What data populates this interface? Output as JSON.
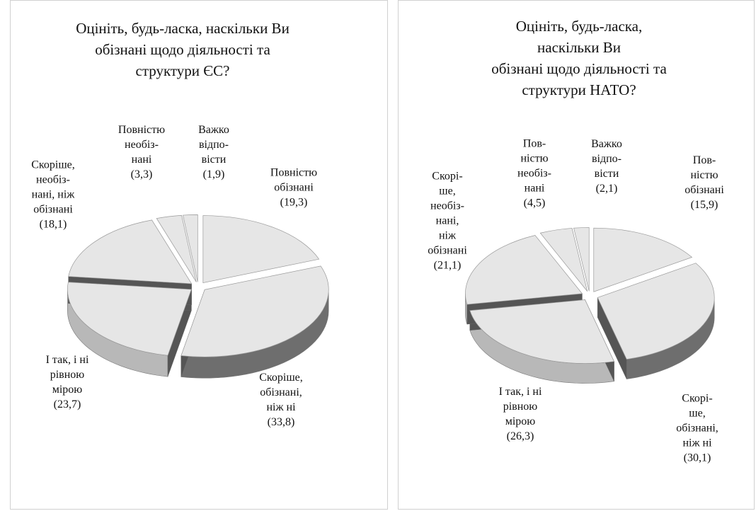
{
  "chart_data": [
    {
      "type": "pie",
      "title": "Оцініть, будь-ласка, наскільки Ви\nобізнані щодо діяльності та\nструктури ЄС?",
      "categories": [
        "Повністю\nобізнані",
        "Скоріше,\nобізнані,\nніж ні",
        "І так, і ні\nрівною\nмірою",
        "Скоріше,\nнеобіз-\nнані, ніж\nобізнані",
        "Повністю\nнеобіз-\nнані",
        "Важко\nвідпо-\nвісти"
      ],
      "values": [
        19.3,
        33.8,
        23.7,
        18.1,
        3.3,
        1.9
      ],
      "value_labels": [
        "(19,3)",
        "(33,8)",
        "(23,7)",
        "(18,1)",
        "(3,3)",
        "(1,9)"
      ],
      "color": "#e6e6e6"
    },
    {
      "type": "pie",
      "title": "Оцініть, будь-ласка, наскільки Ви\nобізнані щодо діяльності та\nструктури НАТО?",
      "categories": [
        "Пов-\nністю\nобізнані",
        "Скорі-\nше,\nобізнані,\nніж ні",
        "І так, і ні\nрівною\nмірою",
        "Скорі-\nше,\nнеобіз-\nнані,\nніж\nобізнані",
        "Пов-\nністю\nнеобіз-\nнані",
        "Важко\nвідпо-\nвісти"
      ],
      "values": [
        15.9,
        30.1,
        26.3,
        21.1,
        4.5,
        2.1
      ],
      "value_labels": [
        "(15,9)",
        "(30,1)",
        "(26,3)",
        "(21,1)",
        "(4,5)",
        "(2,1)"
      ],
      "color": "#e6e6e6"
    }
  ]
}
